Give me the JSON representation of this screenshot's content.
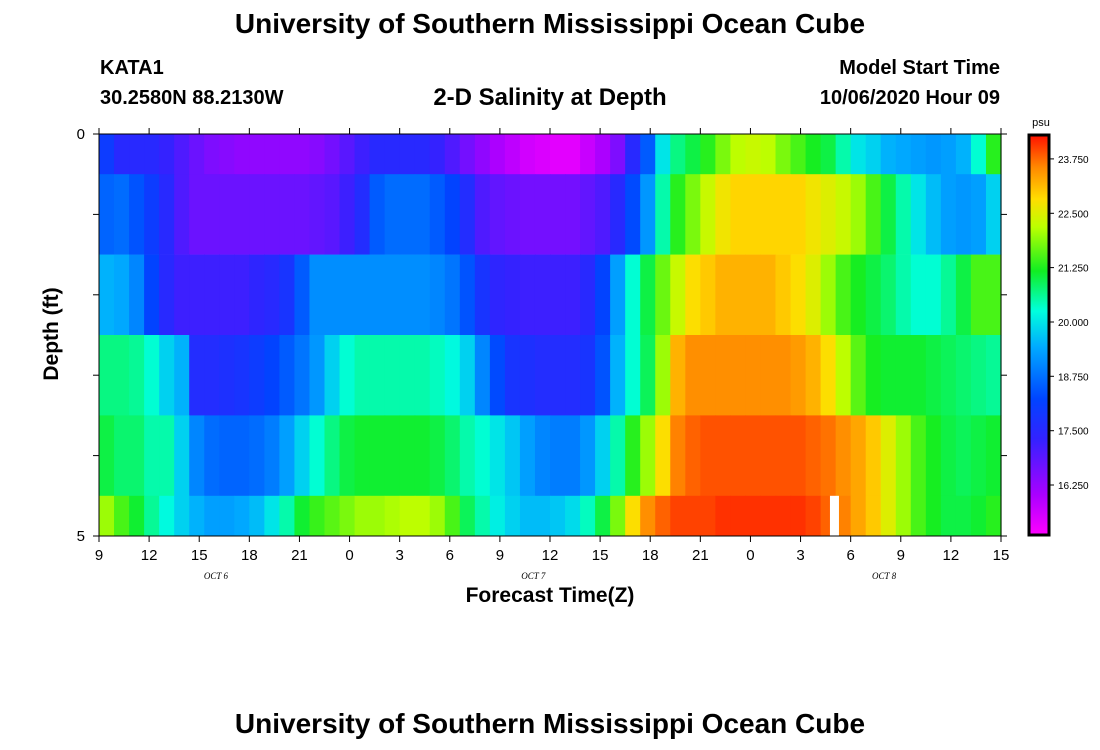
{
  "page": {
    "title": "University of Southern Mississippi Ocean Cube",
    "footer_title": "University of Southern Mississippi Ocean Cube",
    "station_id": "KATA1",
    "station_coords": "30.2580N 88.2130W",
    "plot_title": "2-D Salinity at Depth",
    "model_start_label": "Model Start Time",
    "model_start_value": "10/06/2020 Hour 09"
  },
  "chart_data": {
    "type": "heatmap",
    "title": "2-D Salinity at Depth",
    "xlabel": "Forecast Time(Z)",
    "ylabel": "Depth (ft)",
    "x_tick_labels": [
      "9",
      "12",
      "15",
      "18",
      "21",
      "0",
      "3",
      "6",
      "9",
      "12",
      "15",
      "18",
      "21",
      "0",
      "3",
      "6",
      "9",
      "12",
      "15"
    ],
    "date_labels": [
      {
        "label": "OCT 6",
        "hour_index": 7
      },
      {
        "label": "OCT 7",
        "hour_index": 26
      },
      {
        "label": "OCT 8",
        "hour_index": 47
      }
    ],
    "x_range_hours_from_start": [
      0,
      54
    ],
    "y_tick_labels": [
      "0",
      "5"
    ],
    "ylim": [
      0,
      5
    ],
    "colorbar": {
      "unit": "psu",
      "tick_labels": [
        "23.750",
        "22.500",
        "21.250",
        "20.000",
        "18.750",
        "17.500",
        "16.250"
      ],
      "range": [
        15.1,
        24.3
      ]
    },
    "rows": [
      "0-0.5 ft",
      "0.5-1.5 ft",
      "1.5-2.5 ft",
      "2.5-3.5 ft",
      "3.5-4.5 ft",
      "4.5-5 ft"
    ],
    "series": [
      {
        "values": [
          [
            18,
            17.5,
            17.5,
            17.5,
            17.3,
            17,
            16.7,
            16.5,
            16.4,
            16.3,
            16.3,
            16.3,
            16.3,
            16.3,
            16.4,
            16.6,
            16.9,
            17.2,
            17.5,
            17.5,
            17.5,
            17.5,
            17.3,
            17,
            16.6,
            16.3,
            16,
            15.8,
            15.6,
            15.5,
            15.4,
            15.4,
            15.7,
            16,
            16.5,
            17.5,
            18.5,
            20,
            20.7,
            21,
            21.3,
            21.8,
            22.2,
            22.3,
            22.2,
            21.8,
            21.5,
            21.2,
            21,
            20.5,
            20,
            19.8,
            19.5,
            19.4,
            19.3,
            19.2,
            19.3,
            19.5,
            20.3,
            21.3
          ]
        ]
      },
      {
        "values": [
          [
            18.6,
            18.7,
            18.4,
            18,
            17.5,
            17,
            16.7,
            16.7,
            16.7,
            16.7,
            16.7,
            16.7,
            16.7,
            16.7,
            16.8,
            16.9,
            17.2,
            17.6,
            18.5,
            18.7,
            18.7,
            18.7,
            18.5,
            18.2,
            17.6,
            17,
            16.8,
            16.7,
            16.6,
            16.6,
            16.6,
            16.6,
            16.8,
            17,
            17.5,
            18.3,
            19.2,
            20.5,
            21.3,
            21.8,
            22.3,
            22.7,
            22.9,
            22.9,
            22.9,
            22.9,
            22.9,
            22.7,
            22.5,
            22.3,
            22,
            21.5,
            21,
            20.5,
            20,
            19.6,
            19.3,
            19.2,
            19.3,
            19.8
          ]
        ]
      },
      {
        "values": [
          [
            19.5,
            19.4,
            19,
            18.2,
            17.5,
            17.2,
            17.2,
            17.2,
            17.2,
            17.2,
            17.4,
            17.5,
            17.8,
            18.5,
            19.1,
            19.1,
            19.1,
            19.1,
            19.1,
            19.1,
            19.1,
            19.1,
            19,
            18.8,
            18.4,
            17.8,
            17.4,
            17.3,
            17.2,
            17.2,
            17.2,
            17.2,
            17.5,
            18.2,
            19.3,
            20.3,
            21,
            21.7,
            22.3,
            22.8,
            23,
            23.2,
            23.2,
            23.2,
            23.2,
            23,
            22.8,
            22.5,
            22,
            21.5,
            21.2,
            21,
            20.8,
            20.5,
            20.3,
            20.3,
            20.6,
            21,
            21.5,
            21.5
          ]
        ]
      },
      {
        "values": [
          [
            20.7,
            20.7,
            20.6,
            20.3,
            19.8,
            19.5,
            17.6,
            17.6,
            17.7,
            17.8,
            18,
            18.2,
            18.5,
            18.8,
            19.2,
            19.8,
            20.3,
            20.5,
            20.5,
            20.5,
            20.5,
            20.5,
            20.4,
            20.2,
            19.8,
            19,
            18.3,
            17.8,
            17.7,
            17.6,
            17.6,
            17.6,
            17.8,
            18.4,
            19.5,
            20.3,
            20.9,
            22,
            23.2,
            23.5,
            23.5,
            23.5,
            23.5,
            23.5,
            23.5,
            23.5,
            23.4,
            23.2,
            22.8,
            22.2,
            21.6,
            21.2,
            21.1,
            21.1,
            21.1,
            21,
            20.9,
            20.8,
            20.7,
            20.6
          ]
        ]
      },
      {
        "values": [
          [
            21,
            20.8,
            20.8,
            20.5,
            20.5,
            19.8,
            19,
            18.7,
            18.6,
            18.6,
            18.7,
            18.9,
            19.3,
            19.8,
            20.3,
            20.7,
            21,
            21.1,
            21.1,
            21.1,
            21.1,
            21.1,
            21,
            20.8,
            20.5,
            20.3,
            20,
            19.7,
            19.3,
            19,
            18.9,
            18.9,
            19.2,
            19.8,
            20.5,
            21.3,
            22,
            22.8,
            23.6,
            23.8,
            23.9,
            23.9,
            23.9,
            23.9,
            23.9,
            23.9,
            23.9,
            23.8,
            23.7,
            23.5,
            23.3,
            23,
            22.5,
            22,
            21.5,
            21.2,
            21,
            20.9,
            21,
            21.1
          ]
        ]
      },
      {
        "values": [
          [
            22,
            21.5,
            21.1,
            20.6,
            20.2,
            19.8,
            19.5,
            19.3,
            19.3,
            19.4,
            19.6,
            20,
            20.5,
            21.1,
            21.4,
            21.6,
            21.8,
            22,
            22,
            22.1,
            22.2,
            22.2,
            22,
            21.5,
            20.9,
            20.5,
            20.1,
            19.8,
            19.6,
            19.6,
            19.7,
            19.9,
            20.4,
            21,
            21.8,
            22.8,
            23.5,
            23.8,
            24,
            24,
            24,
            24.1,
            24.1,
            24.1,
            24.1,
            24.1,
            24.1,
            24,
            23.8,
            23.6,
            23.3,
            23,
            22.5,
            22,
            21.5,
            21.2,
            21,
            21,
            21.1,
            21.3
          ]
        ]
      }
    ],
    "missing_cell": {
      "row": 5,
      "hour_index": 44
    },
    "grid": false,
    "legend": "colorbar-right"
  }
}
